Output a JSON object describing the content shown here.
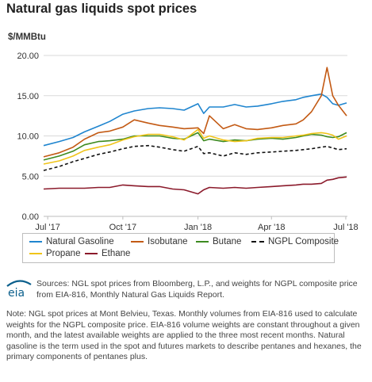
{
  "header": {
    "title": "Natural gas liquids spot prices",
    "unit_label": "$/MMBtu"
  },
  "chart_data": {
    "type": "line",
    "title": "Natural gas liquids spot prices",
    "ylabel": "$/MMBtu",
    "xlabel": "",
    "ylim": [
      0,
      20
    ],
    "xlim": [
      "2017-06-26",
      "2018-07-03"
    ],
    "yticks": [
      "0.00",
      "5.00",
      "10.00",
      "15.00",
      "20.00"
    ],
    "xticks": [
      {
        "date": "2017-07-01",
        "label": "Jul '17"
      },
      {
        "date": "2017-10-01",
        "label": "Oct '17"
      },
      {
        "date": "2018-01-01",
        "label": "Jan '18"
      },
      {
        "date": "2018-04-01",
        "label": "Apr '18"
      },
      {
        "date": "2018-07-01",
        "label": "Jul '18"
      }
    ],
    "grid": true,
    "legend_position": "bottom",
    "x": [
      "2017-06-26",
      "2017-07-15",
      "2017-08-01",
      "2017-08-15",
      "2017-09-01",
      "2017-09-15",
      "2017-10-01",
      "2017-10-15",
      "2017-11-01",
      "2017-11-15",
      "2017-12-01",
      "2017-12-15",
      "2018-01-01",
      "2018-01-08",
      "2018-01-15",
      "2018-02-01",
      "2018-02-15",
      "2018-03-01",
      "2018-03-15",
      "2018-04-01",
      "2018-04-15",
      "2018-05-01",
      "2018-05-10",
      "2018-05-20",
      "2018-06-01",
      "2018-06-08",
      "2018-06-15",
      "2018-06-22",
      "2018-07-02"
    ],
    "series": [
      {
        "name": "Natural Gasoline",
        "color": "#1f85cf",
        "values": [
          8.8,
          9.3,
          9.8,
          10.5,
          11.2,
          11.8,
          12.7,
          13.1,
          13.4,
          13.5,
          13.4,
          13.2,
          14.0,
          12.8,
          13.6,
          13.6,
          13.9,
          13.6,
          13.7,
          14.0,
          14.3,
          14.5,
          14.8,
          15.0,
          15.2,
          14.8,
          14.0,
          13.8,
          14.1
        ]
      },
      {
        "name": "Isobutane",
        "color": "#c35a14",
        "values": [
          7.4,
          7.9,
          8.6,
          9.6,
          10.4,
          10.6,
          11.1,
          12.0,
          11.6,
          11.3,
          11.1,
          10.9,
          11.0,
          10.3,
          12.5,
          10.9,
          11.4,
          10.9,
          10.8,
          11.0,
          11.3,
          11.5,
          12.0,
          13.0,
          15.0,
          18.5,
          15.0,
          13.8,
          12.5
        ]
      },
      {
        "name": "Butane",
        "color": "#3d8a20",
        "values": [
          7.0,
          7.5,
          8.1,
          8.9,
          9.3,
          9.4,
          9.6,
          10.0,
          10.0,
          10.0,
          9.7,
          9.6,
          10.4,
          9.4,
          9.6,
          9.3,
          9.5,
          9.4,
          9.6,
          9.7,
          9.6,
          9.8,
          10.0,
          10.2,
          10.1,
          9.9,
          9.8,
          9.9,
          10.4
        ]
      },
      {
        "name": "Propane",
        "color": "#f0c419",
        "values": [
          6.5,
          6.9,
          7.5,
          8.2,
          8.6,
          8.9,
          9.5,
          9.9,
          10.2,
          10.2,
          9.9,
          9.5,
          10.8,
          9.7,
          10.0,
          9.5,
          9.3,
          9.4,
          9.7,
          9.8,
          9.8,
          10.0,
          10.1,
          10.3,
          10.4,
          10.3,
          10.1,
          9.6,
          10.0
        ]
      },
      {
        "name": "NGPL Composite",
        "color": "#111111",
        "dashed": true,
        "values": [
          5.7,
          6.2,
          6.8,
          7.2,
          7.7,
          8.0,
          8.4,
          8.7,
          8.8,
          8.6,
          8.3,
          8.1,
          8.7,
          7.8,
          7.9,
          7.5,
          7.9,
          7.7,
          7.9,
          8.0,
          8.1,
          8.2,
          8.3,
          8.4,
          8.6,
          8.7,
          8.5,
          8.3,
          8.4
        ]
      },
      {
        "name": "Ethane",
        "color": "#8b1a2b",
        "values": [
          3.4,
          3.5,
          3.5,
          3.5,
          3.6,
          3.6,
          3.9,
          3.8,
          3.7,
          3.7,
          3.4,
          3.3,
          2.8,
          3.3,
          3.6,
          3.5,
          3.6,
          3.5,
          3.6,
          3.7,
          3.8,
          3.9,
          4.0,
          4.0,
          4.1,
          4.5,
          4.6,
          4.8,
          4.9
        ]
      }
    ]
  },
  "legend": {
    "items": [
      {
        "name": "Natural Gasoline",
        "color": "#1f85cf",
        "style": "solid"
      },
      {
        "name": "Isobutane",
        "color": "#c35a14",
        "style": "solid"
      },
      {
        "name": "Butane",
        "color": "#3d8a20",
        "style": "solid"
      },
      {
        "name": "NGPL Composite",
        "color": "#111111",
        "style": "dashed"
      },
      {
        "name": "Propane",
        "color": "#f0c419",
        "style": "solid"
      },
      {
        "name": "Ethane",
        "color": "#8b1a2b",
        "style": "solid"
      }
    ]
  },
  "footer": {
    "sources": "Sources: NGL spot prices from Bloomberg, L.P., and weights for NGPL composite price from EIA-816, Monthly Natural Gas Liquids Report.",
    "note": "Note: NGL spot prices at Mont Belvieu, Texas. Monthly volumes from EIA-816 used to calculate weights for the NGPL composite price. EIA-816 volume weights are constant throughout a given month, and the latest available weights are applied to the three most recent months. Natural gasoline is the term used in the spot and futures markets to describe pentanes and hexanes, the primary components of pentanes plus.",
    "logo_text": "eia",
    "logo_color": "#0b5f8c"
  }
}
